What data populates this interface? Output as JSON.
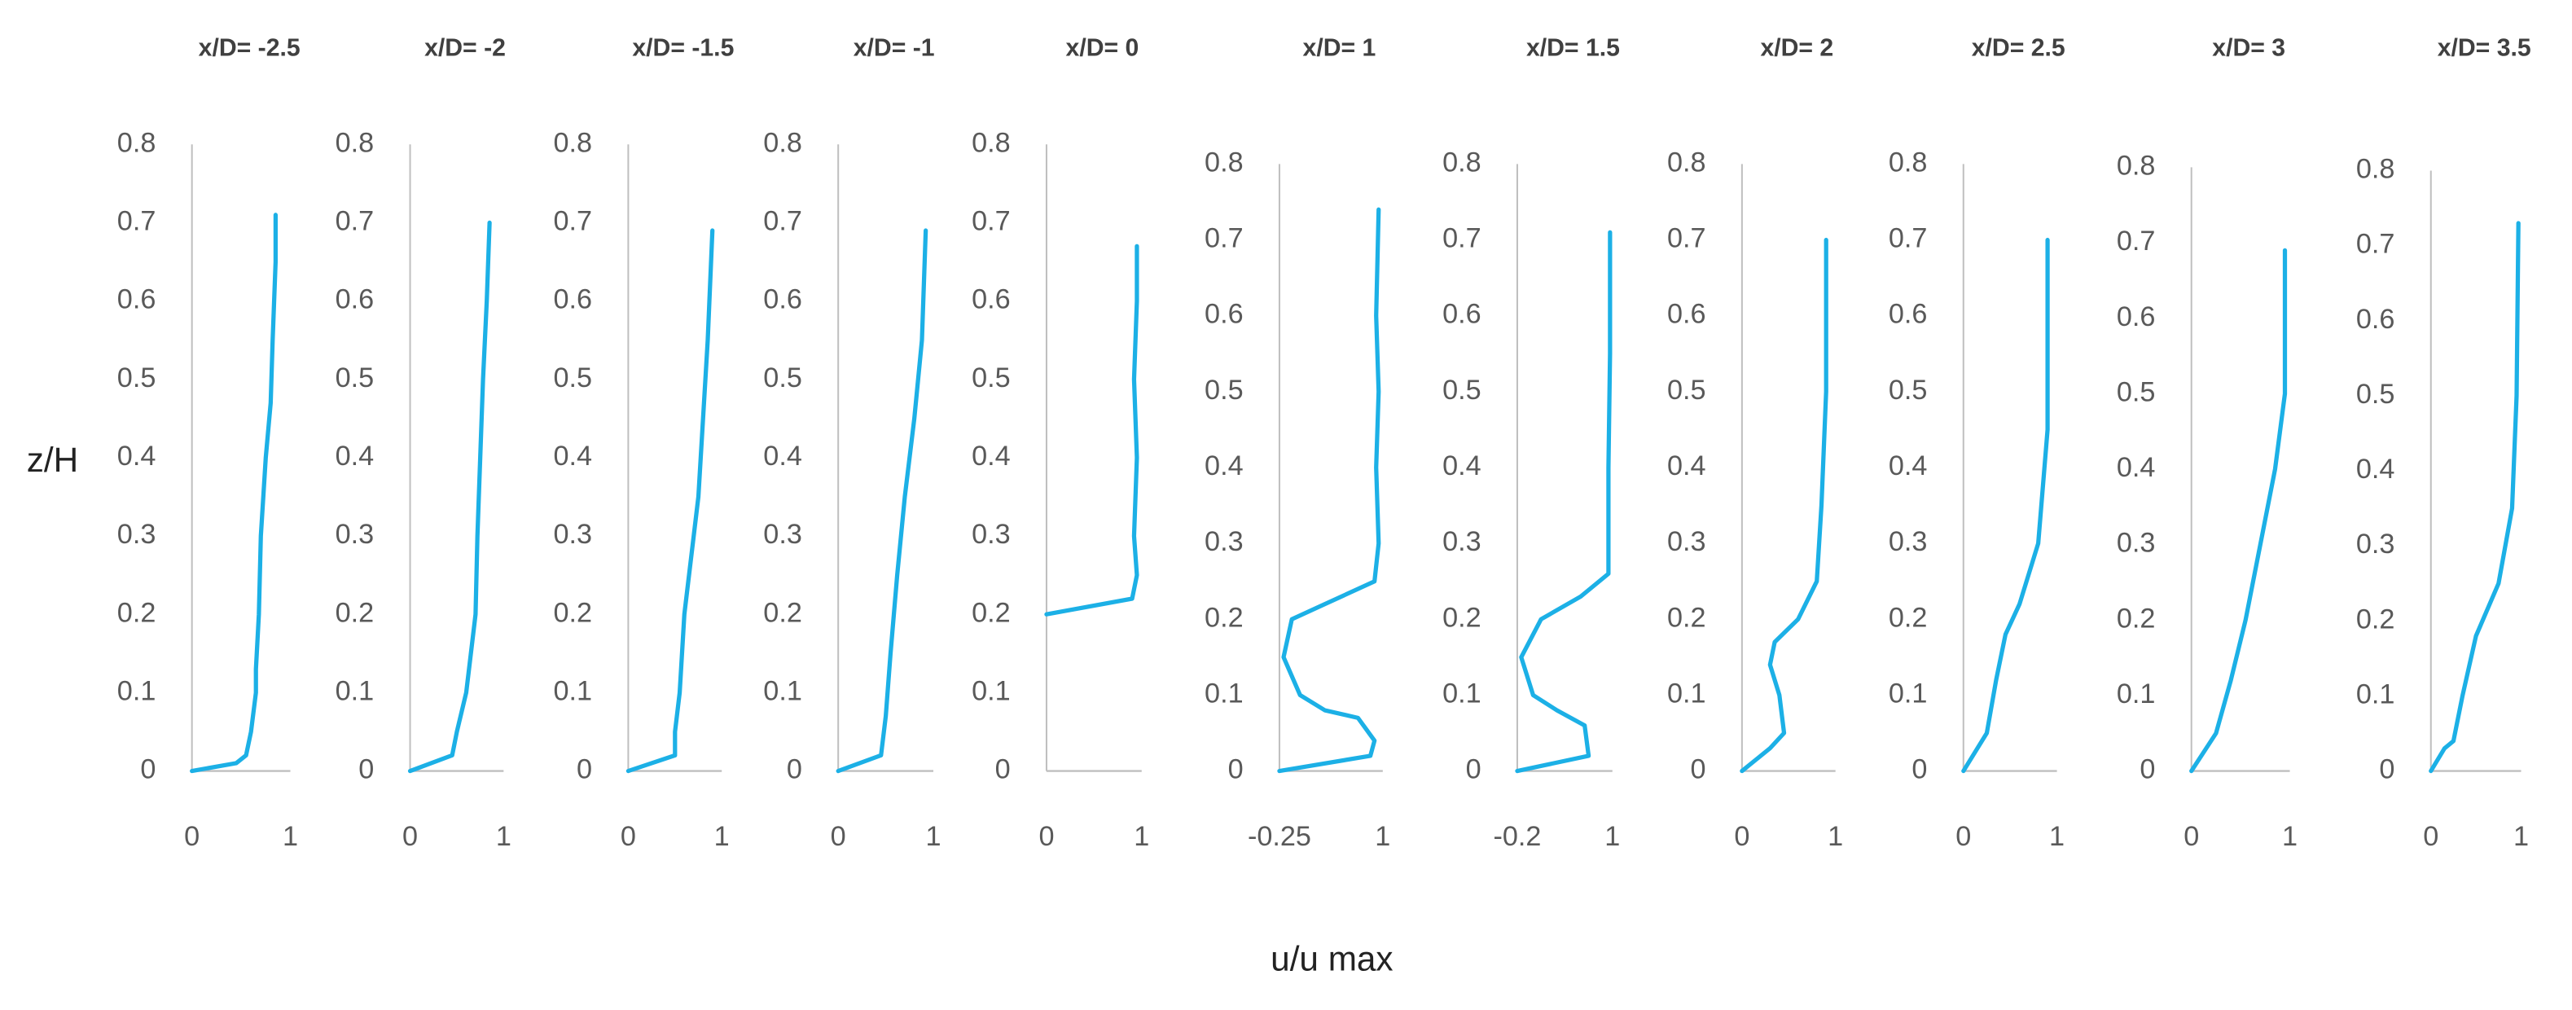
{
  "ylabel": "z/H",
  "xlabel": "u/u max",
  "chart_data": [
    {
      "type": "line",
      "title": "x/D= -2.5",
      "xlim": [
        0,
        1
      ],
      "xticks": [
        0,
        1
      ],
      "ylim": [
        0,
        0.8
      ],
      "yticks": [
        0,
        0.1,
        0.2,
        0.3,
        0.4,
        0.5,
        0.6,
        0.7,
        0.8
      ],
      "x": [
        0,
        0.45,
        0.55,
        0.6,
        0.65,
        0.65,
        0.68,
        0.7,
        0.75,
        0.8,
        0.82,
        0.85,
        0.85
      ],
      "series": [
        {
          "color": "#1cb0e6",
          "values": [
            0,
            0.01,
            0.02,
            0.05,
            0.1,
            0.13,
            0.2,
            0.3,
            0.4,
            0.47,
            0.55,
            0.65,
            0.71
          ]
        }
      ]
    },
    {
      "type": "line",
      "title": "x/D= -2",
      "xlim": [
        0,
        1
      ],
      "xticks": [
        0,
        1
      ],
      "ylim": [
        0,
        0.8
      ],
      "yticks": [
        0,
        0.1,
        0.2,
        0.3,
        0.4,
        0.5,
        0.6,
        0.7,
        0.8
      ],
      "x": [
        0,
        0.45,
        0.5,
        0.6,
        0.65,
        0.7,
        0.72,
        0.75,
        0.78,
        0.82,
        0.85
      ],
      "series": [
        {
          "color": "#1cb0e6",
          "values": [
            0,
            0.02,
            0.05,
            0.1,
            0.15,
            0.2,
            0.3,
            0.4,
            0.5,
            0.6,
            0.7
          ]
        }
      ]
    },
    {
      "type": "line",
      "title": "x/D= -1.5",
      "xlim": [
        0,
        1
      ],
      "xticks": [
        0,
        1
      ],
      "ylim": [
        0,
        0.8
      ],
      "yticks": [
        0,
        0.1,
        0.2,
        0.3,
        0.4,
        0.5,
        0.6,
        0.7,
        0.8
      ],
      "x": [
        0,
        0.5,
        0.5,
        0.55,
        0.6,
        0.7,
        0.75,
        0.8,
        0.85,
        0.9
      ],
      "series": [
        {
          "color": "#1cb0e6",
          "values": [
            0,
            0.02,
            0.05,
            0.1,
            0.2,
            0.3,
            0.35,
            0.45,
            0.55,
            0.69
          ]
        }
      ]
    },
    {
      "type": "line",
      "title": "x/D= -1",
      "xlim": [
        0,
        1
      ],
      "xticks": [
        0,
        1
      ],
      "ylim": [
        0,
        0.8
      ],
      "yticks": [
        0,
        0.1,
        0.2,
        0.3,
        0.4,
        0.5,
        0.6,
        0.7,
        0.8
      ],
      "x": [
        0,
        0.45,
        0.5,
        0.55,
        0.62,
        0.7,
        0.8,
        0.88,
        0.92
      ],
      "series": [
        {
          "color": "#1cb0e6",
          "values": [
            0,
            0.02,
            0.07,
            0.15,
            0.25,
            0.35,
            0.45,
            0.55,
            0.69
          ]
        }
      ]
    },
    {
      "type": "line",
      "title": "x/D= 0",
      "xlim": [
        0,
        1
      ],
      "xticks": [
        0,
        1
      ],
      "ylim": [
        0,
        0.8
      ],
      "yticks": [
        0,
        0.1,
        0.2,
        0.3,
        0.4,
        0.5,
        0.6,
        0.7,
        0.8
      ],
      "x": [
        0,
        0.9,
        0.95,
        0.92,
        0.95,
        0.92,
        0.95,
        0.95
      ],
      "series": [
        {
          "color": "#1cb0e6",
          "values": [
            0.2,
            0.22,
            0.25,
            0.3,
            0.4,
            0.5,
            0.6,
            0.67
          ]
        }
      ]
    },
    {
      "type": "line",
      "title": "x/D= 1",
      "xlim": [
        -0.25,
        1
      ],
      "xticks": [
        -0.25,
        1
      ],
      "ylim": [
        0,
        0.8
      ],
      "yticks": [
        0,
        0.1,
        0.2,
        0.3,
        0.4,
        0.5,
        0.6,
        0.7,
        0.8
      ],
      "x": [
        -0.25,
        0.85,
        0.9,
        0.7,
        0.3,
        0,
        -0.2,
        -0.1,
        0.3,
        0.9,
        0.95,
        0.92,
        0.95,
        0.92,
        0.95
      ],
      "series": [
        {
          "color": "#1cb0e6",
          "values": [
            0,
            0.02,
            0.04,
            0.07,
            0.08,
            0.1,
            0.15,
            0.2,
            0.22,
            0.25,
            0.3,
            0.4,
            0.5,
            0.6,
            0.74
          ]
        }
      ]
    },
    {
      "type": "line",
      "title": "x/D= 1.5",
      "xlim": [
        -0.2,
        1
      ],
      "xticks": [
        -0.2,
        1
      ],
      "ylim": [
        0,
        0.8
      ],
      "yticks": [
        0,
        0.1,
        0.2,
        0.3,
        0.4,
        0.5,
        0.6,
        0.7,
        0.8
      ],
      "x": [
        -0.2,
        0.7,
        0.65,
        0.3,
        0,
        -0.15,
        0.1,
        0.6,
        0.95,
        0.95,
        0.97,
        0.97
      ],
      "series": [
        {
          "color": "#1cb0e6",
          "values": [
            0,
            0.02,
            0.06,
            0.08,
            0.1,
            0.15,
            0.2,
            0.23,
            0.26,
            0.4,
            0.55,
            0.71
          ]
        }
      ]
    },
    {
      "type": "line",
      "title": "x/D= 2",
      "xlim": [
        0,
        1
      ],
      "xticks": [
        0,
        1
      ],
      "ylim": [
        0,
        0.8
      ],
      "yticks": [
        0,
        0.1,
        0.2,
        0.3,
        0.4,
        0.5,
        0.6,
        0.7,
        0.8
      ],
      "x": [
        0,
        0.3,
        0.45,
        0.4,
        0.3,
        0.35,
        0.6,
        0.8,
        0.85,
        0.9,
        0.9
      ],
      "series": [
        {
          "color": "#1cb0e6",
          "values": [
            0,
            0.03,
            0.05,
            0.1,
            0.14,
            0.17,
            0.2,
            0.25,
            0.35,
            0.5,
            0.7
          ]
        }
      ]
    },
    {
      "type": "line",
      "title": "x/D= 2.5",
      "xlim": [
        0,
        1
      ],
      "xticks": [
        0,
        1
      ],
      "ylim": [
        0,
        0.8
      ],
      "yticks": [
        0,
        0.1,
        0.2,
        0.3,
        0.4,
        0.5,
        0.6,
        0.7,
        0.8
      ],
      "x": [
        0,
        0.25,
        0.35,
        0.45,
        0.6,
        0.8,
        0.9,
        0.9
      ],
      "series": [
        {
          "color": "#1cb0e6",
          "values": [
            0,
            0.05,
            0.12,
            0.18,
            0.22,
            0.3,
            0.45,
            0.7
          ]
        }
      ]
    },
    {
      "type": "line",
      "title": "x/D= 3",
      "xlim": [
        0,
        1
      ],
      "xticks": [
        0,
        1
      ],
      "ylim": [
        0,
        0.8
      ],
      "yticks": [
        0,
        0.1,
        0.2,
        0.3,
        0.4,
        0.5,
        0.6,
        0.7,
        0.8
      ],
      "x": [
        0,
        0.25,
        0.4,
        0.55,
        0.7,
        0.85,
        0.95,
        0.95
      ],
      "series": [
        {
          "color": "#1cb0e6",
          "values": [
            0,
            0.05,
            0.12,
            0.2,
            0.3,
            0.4,
            0.5,
            0.69
          ]
        }
      ]
    },
    {
      "type": "line",
      "title": "x/D= 3.5",
      "xlim": [
        0,
        1
      ],
      "xticks": [
        0,
        1
      ],
      "ylim": [
        0,
        0.8
      ],
      "yticks": [
        0,
        0.1,
        0.2,
        0.3,
        0.4,
        0.5,
        0.6,
        0.7,
        0.8
      ],
      "x": [
        0,
        0.15,
        0.25,
        0.35,
        0.5,
        0.75,
        0.9,
        0.95,
        0.97
      ],
      "series": [
        {
          "color": "#1cb0e6",
          "values": [
            0,
            0.03,
            0.04,
            0.1,
            0.18,
            0.25,
            0.35,
            0.5,
            0.73
          ]
        }
      ]
    }
  ]
}
